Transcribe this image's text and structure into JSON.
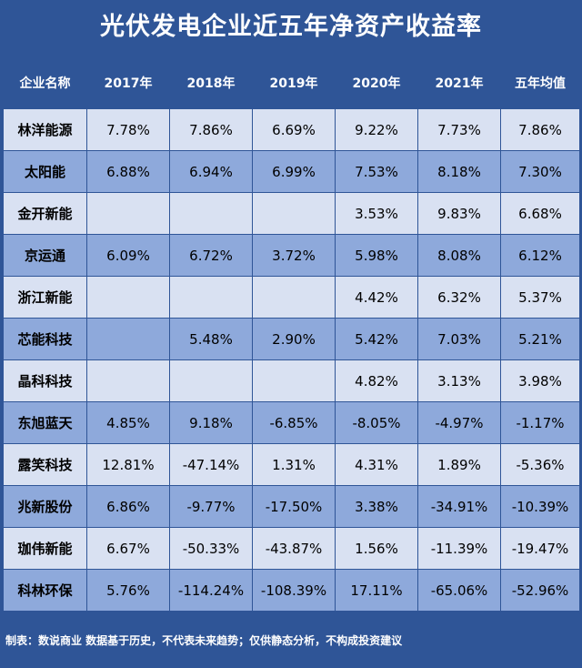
{
  "chart_data": {
    "type": "table",
    "title": "光伏发电企业近五年净资产收益率",
    "columns": [
      "企业名称",
      "2017年",
      "2018年",
      "2019年",
      "2020年",
      "2021年",
      "五年均值"
    ],
    "rows": [
      [
        "林洋能源",
        "7.78%",
        "7.86%",
        "6.69%",
        "9.22%",
        "7.73%",
        "7.86%"
      ],
      [
        "太阳能",
        "6.88%",
        "6.94%",
        "6.99%",
        "7.53%",
        "8.18%",
        "7.30%"
      ],
      [
        "金开新能",
        "",
        "",
        "",
        "3.53%",
        "9.83%",
        "6.68%"
      ],
      [
        "京运通",
        "6.09%",
        "6.72%",
        "3.72%",
        "5.98%",
        "8.08%",
        "6.12%"
      ],
      [
        "浙江新能",
        "",
        "",
        "",
        "4.42%",
        "6.32%",
        "5.37%"
      ],
      [
        "芯能科技",
        "",
        "5.48%",
        "2.90%",
        "5.42%",
        "7.03%",
        "5.21%"
      ],
      [
        "晶科科技",
        "",
        "",
        "",
        "4.82%",
        "3.13%",
        "3.98%"
      ],
      [
        "东旭蓝天",
        "4.85%",
        "9.18%",
        "-6.85%",
        "-8.05%",
        "-4.97%",
        "-1.17%"
      ],
      [
        "露笑科技",
        "12.81%",
        "-47.14%",
        "1.31%",
        "4.31%",
        "1.89%",
        "-5.36%"
      ],
      [
        "兆新股份",
        "6.86%",
        "-9.77%",
        "-17.50%",
        "3.38%",
        "-34.91%",
        "-10.39%"
      ],
      [
        "珈伟新能",
        "6.67%",
        "-50.33%",
        "-43.87%",
        "1.56%",
        "-11.39%",
        "-19.47%"
      ],
      [
        "科林环保",
        "5.76%",
        "-114.24%",
        "-108.39%",
        "17.11%",
        "-65.06%",
        "-52.96%"
      ]
    ],
    "footnote": "制表：数说商业 数据基于历史，不代表未来趋势；仅供静态分析，不构成投资建议"
  },
  "colors": {
    "background": "#2f5597",
    "row_light": "#d9e1f2",
    "row_dark": "#8ea9db"
  }
}
